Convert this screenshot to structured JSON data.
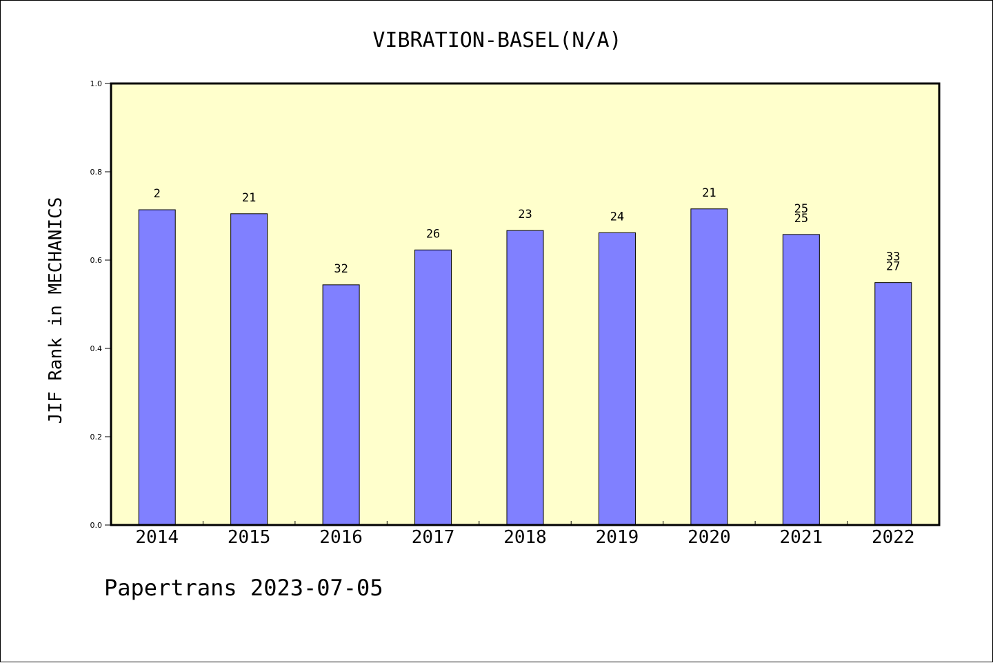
{
  "chart_data": {
    "type": "bar",
    "title": "VIBRATION-BASEL(N/A)",
    "xlabel": "",
    "ylabel": "JIF Rank in MECHANICS",
    "categories": [
      "2014",
      "2015",
      "2016",
      "2017",
      "2018",
      "2019",
      "2020",
      "2021",
      "2022"
    ],
    "values": [
      0.714,
      0.705,
      0.544,
      0.623,
      0.667,
      0.662,
      0.716,
      0.658,
      0.549
    ],
    "bar_labels": [
      [
        "2"
      ],
      [
        "21"
      ],
      [
        "32"
      ],
      [
        "26"
      ],
      [
        "23"
      ],
      [
        "24"
      ],
      [
        "21"
      ],
      [
        "25",
        "25"
      ],
      [
        "33",
        "27"
      ]
    ],
    "ylim": [
      0,
      1.0
    ],
    "yticks": [
      "0.0",
      "0.2",
      "0.4",
      "0.6",
      "0.8",
      "1.0"
    ],
    "grid": false,
    "legend": "none",
    "colors": {
      "plot_background": "#ffffcc",
      "bar_fill": "#8080ff",
      "bar_edge": "#000000"
    }
  },
  "footer": {
    "text": "Papertrans 2023-07-05"
  }
}
